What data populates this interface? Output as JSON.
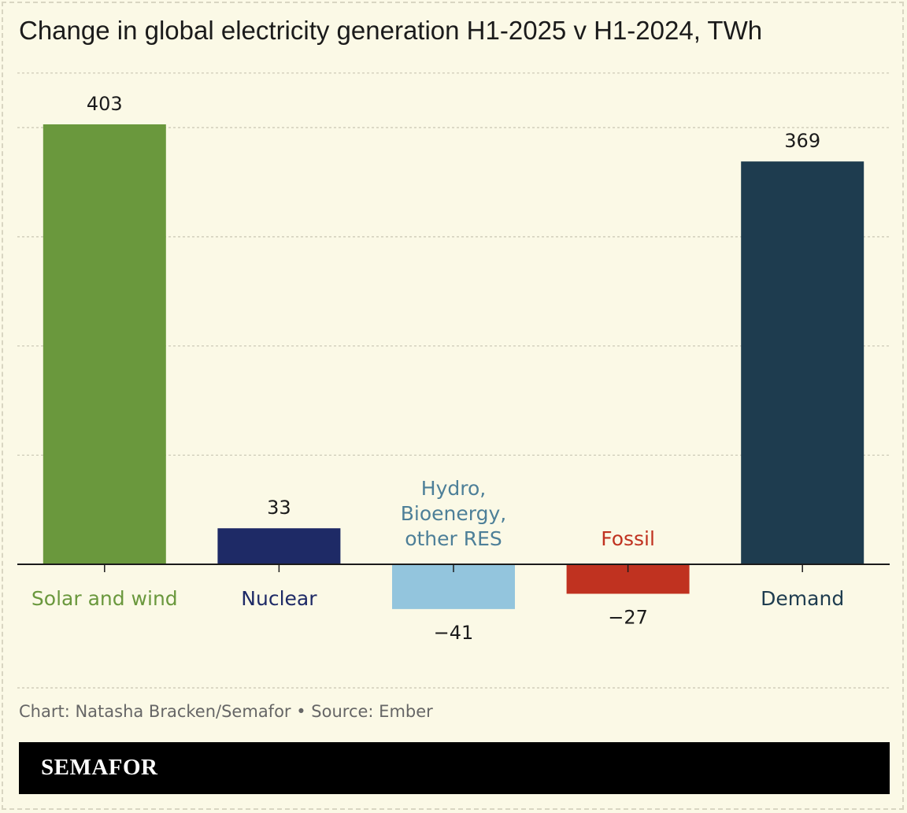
{
  "title": "Change in global electricity generation H1-2025 v H1-2024, TWh",
  "credit": "Chart: Natasha Bracken/Semafor • Source: Ember",
  "brand": "SEMAFOR",
  "colors": {
    "background": "#fbf9e6",
    "gridline": "#c9c6b4",
    "axis": "#1b1b1b"
  },
  "chart_data": {
    "type": "bar",
    "title": "Change in global electricity generation H1-2025 v H1-2024, TWh",
    "categories": [
      "Solar and wind",
      "Nuclear",
      "Hydro, Bioenergy, other RES",
      "Fossil",
      "Demand"
    ],
    "category_lines": [
      [
        "Solar and wind"
      ],
      [
        "Nuclear"
      ],
      [
        "Hydro,",
        "Bioenergy,",
        "other RES"
      ],
      [
        "Fossil"
      ],
      [
        "Demand"
      ]
    ],
    "values": [
      403,
      33,
      -41,
      -27,
      369
    ],
    "value_labels": [
      "403",
      "33",
      "−41",
      "−27",
      "369"
    ],
    "colors": [
      "#6a983d",
      "#1e2a66",
      "#93c5dd",
      "#c03220",
      "#1e3c4f"
    ],
    "label_colors": [
      "#6a983d",
      "#1e2a66",
      "#4d7f98",
      "#c03220",
      "#1e3c4f"
    ],
    "ylim": [
      -100,
      450
    ],
    "gridlines": [
      100,
      200,
      300,
      400,
      450
    ],
    "grid": true,
    "xlabel": "",
    "ylabel": ""
  }
}
